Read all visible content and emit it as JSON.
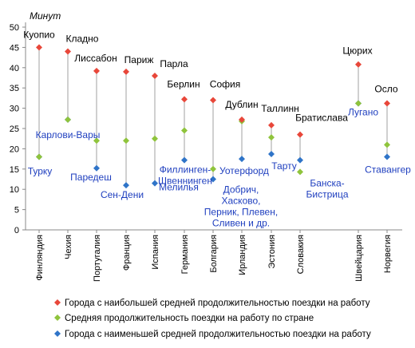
{
  "chart_data": {
    "type": "scatter",
    "unit_label": "Минут",
    "ylim": [
      0,
      50
    ],
    "ytick_step": 5,
    "categories": [
      "Финляндия",
      "Чехия",
      "Португалия",
      "Франция",
      "Испания",
      "Германия",
      "Болгария",
      "Ирландия",
      "Эстония",
      "Словакия",
      "Швейцария",
      "Норвегия"
    ],
    "grid": false,
    "legend_position": "bottom",
    "series": [
      {
        "name": "Города с наибольшей средней продолжительностью поездки на работу",
        "color": "#e8473a",
        "values": [
          45,
          44,
          39.2,
          39,
          38,
          32.2,
          32,
          27.2,
          25.8,
          23.5,
          40.8,
          31.2
        ],
        "labels": [
          "Куопио",
          "Кладно",
          "Лиссабон",
          "Париж",
          "Парла",
          "Берлин",
          "София",
          "Дублин",
          "Таллинн",
          "Братислава",
          "Цюрих",
          "Осло"
        ]
      },
      {
        "name": "Средняя продолжительность поездки на работу по стране",
        "color": "#8fc43c",
        "values": [
          18,
          27.2,
          22,
          22,
          22.5,
          24.5,
          15,
          26.8,
          22.8,
          14.3,
          31.2,
          21
        ]
      },
      {
        "name": "Города с наименьшей средней продолжительностью поездки на работу",
        "color": "#2f74c8",
        "values": [
          18,
          27.2,
          15.2,
          11,
          11.5,
          17.2,
          12.5,
          17.5,
          18.7,
          17.2,
          31.2,
          18
        ],
        "labels": [
          "Турку",
          "Карлови-Вары",
          "Паредеш",
          "Сен-Дени",
          "Мелилья",
          "Филлинген-Швеннинген",
          "",
          "Уотерфорд",
          "Тарту",
          "Банска-Бистрица",
          "Лугано",
          "Ставангер"
        ]
      }
    ],
    "extra_label": "Добрич, Хасково, Перник, Плевен, Сливен и др."
  }
}
